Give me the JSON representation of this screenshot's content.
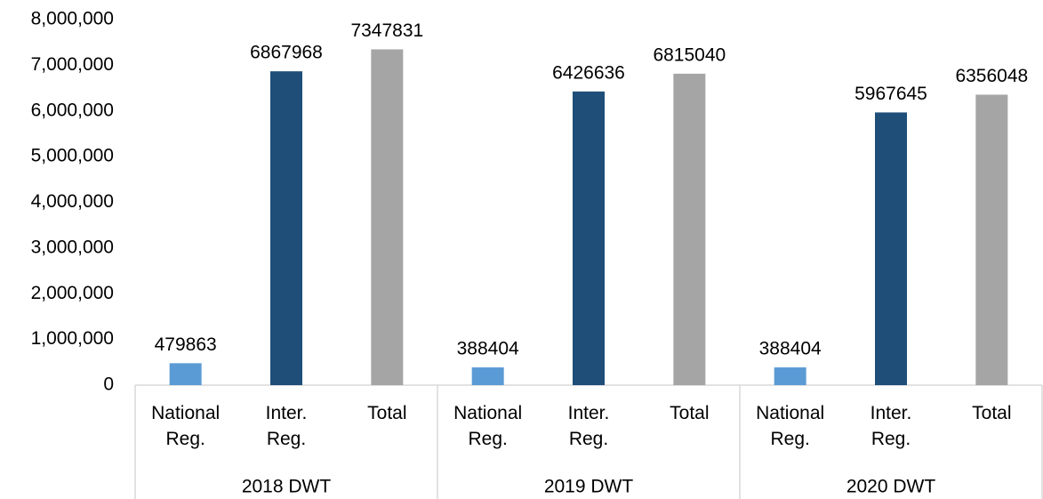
{
  "chart_data": {
    "type": "bar",
    "categories": [
      "2018 DWT",
      "2019 DWT",
      "2020 DWT"
    ],
    "series": [
      {
        "name": "National Reg.",
        "color": "#5b9bd5",
        "values": [
          479863,
          388404,
          388404
        ]
      },
      {
        "name": "Inter. Reg.",
        "color": "#1f4e79",
        "values": [
          6867968,
          6426636,
          5967645
        ]
      },
      {
        "name": "Total",
        "color": "#a5a5a5",
        "values": [
          7347831,
          6815040,
          6356048
        ]
      }
    ],
    "ylim": [
      0,
      8000000
    ],
    "yticks": [
      0,
      {
        "value": 1000000,
        "label": "1,000,000"
      },
      {
        "value": 2000000,
        "label": "2,000,000"
      },
      {
        "value": 3000000,
        "label": "3,000,000"
      },
      {
        "value": 4000000,
        "label": "4,000,000"
      },
      {
        "value": 5000000,
        "label": "5,000,000"
      },
      {
        "value": 6000000,
        "label": "6,000,000"
      },
      {
        "value": 7000000,
        "label": "7,000,000"
      },
      {
        "value": 8000000,
        "label": "8,000,000"
      }
    ],
    "grid": false
  }
}
